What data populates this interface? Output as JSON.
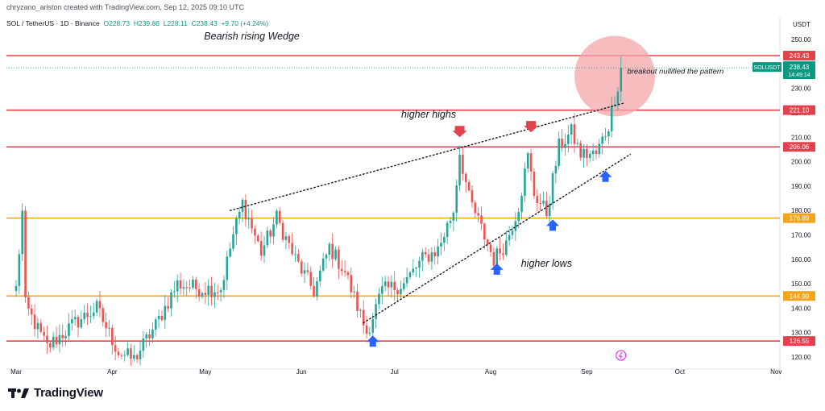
{
  "header": {
    "created_by": "chryzano_ariston created with TradingView.com, Sep 12, 2025 09:10 UTC",
    "symbol": "SOL / TetherUS · 1D · Binance",
    "open": "O228.73",
    "high": "H239.86",
    "low": "L228.11",
    "close": "C238.43",
    "change": "+9.70 (+4.24%)"
  },
  "footer": {
    "brand": "TradingView"
  },
  "chart_data": {
    "type": "candlestick",
    "currency_label": "USDT",
    "y_ticks": [
      120,
      130,
      140,
      150,
      160,
      170,
      180,
      190,
      200,
      210,
      220,
      230,
      240,
      250
    ],
    "ylim": [
      117,
      255
    ],
    "x_tick_labels": [
      "Mar",
      "Apr",
      "May",
      "Jun",
      "Jul",
      "Aug",
      "Sep",
      "Oct",
      "Nov"
    ],
    "price_levels": [
      {
        "value": 243.43,
        "label": "243.43",
        "color": "#e0434b"
      },
      {
        "value": 221.1,
        "label": "221.10",
        "color": "#e0434b"
      },
      {
        "value": 206.06,
        "label": "206.06",
        "color": "#e0434b"
      },
      {
        "value": 176.89,
        "label": "176.89",
        "color": "#f2a41a"
      },
      {
        "value": 144.99,
        "label": "144.99",
        "color": "#f2a41a"
      },
      {
        "value": 126.55,
        "label": "126.55",
        "color": "#e0434b"
      }
    ],
    "last_price": {
      "symbol": "SOLUSDT",
      "value": 238.43,
      "label": "238.43",
      "countdown": "14:49:14",
      "color": "#089981"
    },
    "series": [
      {
        "name": "SOLUSDT",
        "points": [
          {
            "date": "2025-03-01",
            "close": 148
          },
          {
            "date": "2025-03-03",
            "close": 179
          },
          {
            "date": "2025-03-04",
            "close": 141
          },
          {
            "date": "2025-03-11",
            "close": 124
          },
          {
            "date": "2025-03-20",
            "close": 134
          },
          {
            "date": "2025-03-27",
            "close": 140
          },
          {
            "date": "2025-04-03",
            "close": 122
          },
          {
            "date": "2025-04-08",
            "close": 119
          },
          {
            "date": "2025-04-15",
            "close": 133
          },
          {
            "date": "2025-04-22",
            "close": 150
          },
          {
            "date": "2025-04-29",
            "close": 148
          },
          {
            "date": "2025-05-06",
            "close": 148
          },
          {
            "date": "2025-05-10",
            "close": 170
          },
          {
            "date": "2025-05-13",
            "close": 183
          },
          {
            "date": "2025-05-19",
            "close": 163
          },
          {
            "date": "2025-05-24",
            "close": 177
          },
          {
            "date": "2025-05-30",
            "close": 160
          },
          {
            "date": "2025-06-05",
            "close": 147
          },
          {
            "date": "2025-06-10",
            "close": 165
          },
          {
            "date": "2025-06-15",
            "close": 155
          },
          {
            "date": "2025-06-22",
            "close": 130
          },
          {
            "date": "2025-06-27",
            "close": 147
          },
          {
            "date": "2025-07-04",
            "close": 150
          },
          {
            "date": "2025-07-10",
            "close": 160
          },
          {
            "date": "2025-07-15",
            "close": 164
          },
          {
            "date": "2025-07-20",
            "close": 180
          },
          {
            "date": "2025-07-22",
            "close": 204
          },
          {
            "date": "2025-07-25",
            "close": 185
          },
          {
            "date": "2025-08-02",
            "close": 160
          },
          {
            "date": "2025-08-06",
            "close": 167
          },
          {
            "date": "2025-08-10",
            "close": 182
          },
          {
            "date": "2025-08-13",
            "close": 202
          },
          {
            "date": "2025-08-15",
            "close": 187
          },
          {
            "date": "2025-08-19",
            "close": 179
          },
          {
            "date": "2025-08-23",
            "close": 206
          },
          {
            "date": "2025-08-27",
            "close": 212
          },
          {
            "date": "2025-08-30",
            "close": 203
          },
          {
            "date": "2025-09-04",
            "close": 203
          },
          {
            "date": "2025-09-08",
            "close": 215
          },
          {
            "date": "2025-09-12",
            "close": 238.43
          }
        ]
      }
    ],
    "trendlines": [
      {
        "start": {
          "date": "2025-05-09",
          "value": 180
        },
        "end": {
          "date": "2025-09-13",
          "value": 224
        }
      },
      {
        "start": {
          "date": "2025-06-21",
          "value": 134
        },
        "end": {
          "date": "2025-09-15",
          "value": 203
        }
      }
    ],
    "annotations": [
      {
        "text": "Bearish rising Wedge",
        "date": "2025-05-16",
        "value": 250
      },
      {
        "text": "higher highs",
        "date": "2025-07-12",
        "value": 218
      },
      {
        "text": "higher lows",
        "date": "2025-08-19",
        "value": 157
      },
      {
        "text": "breakout nullified the pattern",
        "date": "2025-09-14",
        "value": 236
      }
    ],
    "arrows": [
      {
        "direction": "down",
        "date": "2025-07-22",
        "color": "#e0434b"
      },
      {
        "direction": "down",
        "date": "2025-08-14",
        "color": "#e0434b"
      },
      {
        "direction": "up",
        "date": "2025-06-24",
        "color": "#2962ff"
      },
      {
        "direction": "up",
        "date": "2025-08-03",
        "color": "#2962ff"
      },
      {
        "direction": "up",
        "date": "2025-08-21",
        "color": "#2962ff"
      },
      {
        "direction": "up",
        "date": "2025-09-07",
        "color": "#2962ff"
      }
    ],
    "highlight_circle": {
      "date": "2025-09-10",
      "value": 235,
      "color": "#f4a6a8"
    }
  }
}
